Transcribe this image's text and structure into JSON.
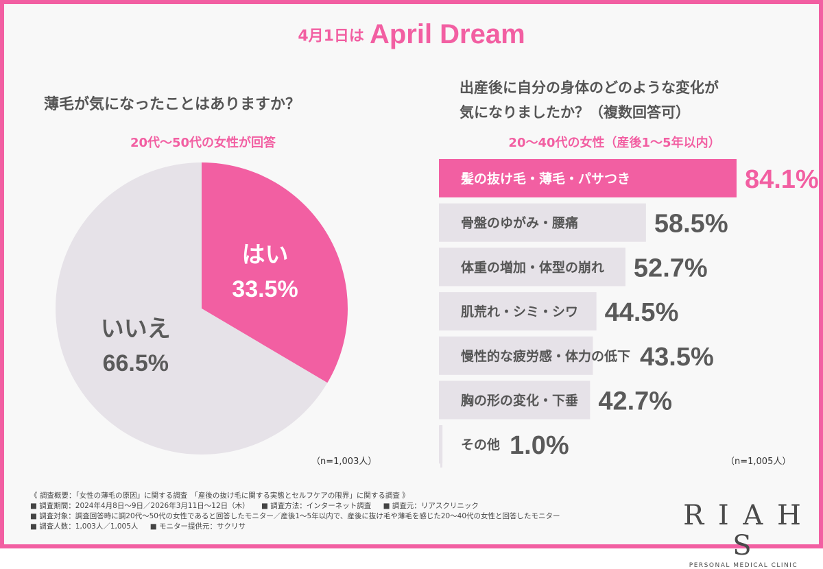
{
  "header": {
    "prefix": "4月1日は",
    "title": "April Dream"
  },
  "left_panel": {
    "question": "薄毛が気になったことはありますか？",
    "subtitle": "20代～50代の女性が回答",
    "n": "（n=1,003人）"
  },
  "right_panel": {
    "question_line1": "出産後に自分の身体のどのような変化が",
    "question_line2": "気になりましたか？（複数回答可）",
    "subtitle": "20～40代の女性（産後1～5年以内）",
    "n": "（n=1,005人）"
  },
  "colors": {
    "accent": "#f25fa2",
    "bar_gray": "#e6e2e8",
    "value_gray": "#5a5a5a"
  },
  "chart_data": [
    {
      "type": "pie",
      "categories": [
        "はい",
        "いいえ"
      ],
      "values": [
        33.5,
        66.5
      ],
      "labels": [
        "33.5%",
        "66.5%"
      ],
      "colors": [
        "#f25fa2",
        "#e6e2e8"
      ]
    },
    {
      "type": "bar",
      "orientation": "horizontal",
      "categories": [
        "髪の抜け毛・薄毛・パサつき",
        "骨盤のゆがみ・腰痛",
        "体重の増加・体型の崩れ",
        "肌荒れ・シミ・シワ",
        "慢性的な疲労感・体力の低下",
        "胸の形の変化・下垂",
        "その他"
      ],
      "values": [
        84.1,
        58.5,
        52.7,
        44.5,
        43.5,
        42.7,
        1.0
      ],
      "labels": [
        "84.1%",
        "58.5%",
        "52.7%",
        "44.5%",
        "43.5%",
        "42.7%",
        "1.0%"
      ],
      "highlight_index": 0,
      "xlim": [
        0,
        100
      ]
    }
  ],
  "footer": {
    "line1": "《 調査概要：「女性の薄毛の原因」に関する調査　「産後の抜け毛に関する実態とセルフケアの限界」に関する調査 》",
    "period": "■ 調査期間：2024年4月8日～9日／2026年3月11日～12日（木）",
    "method": "■ 調査方法：インターネット調査",
    "source": "■ 調査元：リアスクリニック",
    "target": "■ 調査対象：調査回答時に調20代～50代の女性であると回答したモニター／産後1～5年以内で、産後に抜け毛や薄毛を感じた20～40代の女性と回答したモニター",
    "count": "■ 調査人数：1,003人／1,005人",
    "provider": "■ モニター提供元：サクリサ"
  },
  "logo": {
    "mark": "R I A H S",
    "subtitle": "PERSONAL MEDICAL CLINIC"
  }
}
